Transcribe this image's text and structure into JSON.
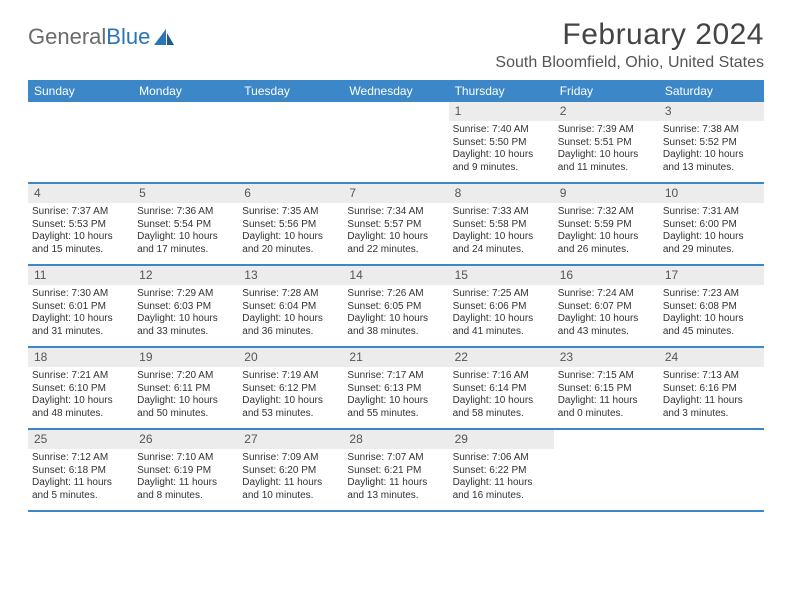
{
  "logo": {
    "text1": "General",
    "text2": "Blue"
  },
  "title": "February 2024",
  "location": "South Bloomfield, Ohio, United States",
  "dayNames": [
    "Sunday",
    "Monday",
    "Tuesday",
    "Wednesday",
    "Thursday",
    "Friday",
    "Saturday"
  ],
  "colors": {
    "headerBar": "#3b87c8",
    "dayNumBg": "#ececec",
    "text": "#333333",
    "logoGray": "#6b6b6b",
    "logoBlue": "#2b74b6"
  },
  "weeks": [
    [
      {
        "n": "",
        "sunrise": "",
        "sunset": "",
        "daylight": ""
      },
      {
        "n": "",
        "sunrise": "",
        "sunset": "",
        "daylight": ""
      },
      {
        "n": "",
        "sunrise": "",
        "sunset": "",
        "daylight": ""
      },
      {
        "n": "",
        "sunrise": "",
        "sunset": "",
        "daylight": ""
      },
      {
        "n": "1",
        "sunrise": "Sunrise: 7:40 AM",
        "sunset": "Sunset: 5:50 PM",
        "daylight": "Daylight: 10 hours and 9 minutes."
      },
      {
        "n": "2",
        "sunrise": "Sunrise: 7:39 AM",
        "sunset": "Sunset: 5:51 PM",
        "daylight": "Daylight: 10 hours and 11 minutes."
      },
      {
        "n": "3",
        "sunrise": "Sunrise: 7:38 AM",
        "sunset": "Sunset: 5:52 PM",
        "daylight": "Daylight: 10 hours and 13 minutes."
      }
    ],
    [
      {
        "n": "4",
        "sunrise": "Sunrise: 7:37 AM",
        "sunset": "Sunset: 5:53 PM",
        "daylight": "Daylight: 10 hours and 15 minutes."
      },
      {
        "n": "5",
        "sunrise": "Sunrise: 7:36 AM",
        "sunset": "Sunset: 5:54 PM",
        "daylight": "Daylight: 10 hours and 17 minutes."
      },
      {
        "n": "6",
        "sunrise": "Sunrise: 7:35 AM",
        "sunset": "Sunset: 5:56 PM",
        "daylight": "Daylight: 10 hours and 20 minutes."
      },
      {
        "n": "7",
        "sunrise": "Sunrise: 7:34 AM",
        "sunset": "Sunset: 5:57 PM",
        "daylight": "Daylight: 10 hours and 22 minutes."
      },
      {
        "n": "8",
        "sunrise": "Sunrise: 7:33 AM",
        "sunset": "Sunset: 5:58 PM",
        "daylight": "Daylight: 10 hours and 24 minutes."
      },
      {
        "n": "9",
        "sunrise": "Sunrise: 7:32 AM",
        "sunset": "Sunset: 5:59 PM",
        "daylight": "Daylight: 10 hours and 26 minutes."
      },
      {
        "n": "10",
        "sunrise": "Sunrise: 7:31 AM",
        "sunset": "Sunset: 6:00 PM",
        "daylight": "Daylight: 10 hours and 29 minutes."
      }
    ],
    [
      {
        "n": "11",
        "sunrise": "Sunrise: 7:30 AM",
        "sunset": "Sunset: 6:01 PM",
        "daylight": "Daylight: 10 hours and 31 minutes."
      },
      {
        "n": "12",
        "sunrise": "Sunrise: 7:29 AM",
        "sunset": "Sunset: 6:03 PM",
        "daylight": "Daylight: 10 hours and 33 minutes."
      },
      {
        "n": "13",
        "sunrise": "Sunrise: 7:28 AM",
        "sunset": "Sunset: 6:04 PM",
        "daylight": "Daylight: 10 hours and 36 minutes."
      },
      {
        "n": "14",
        "sunrise": "Sunrise: 7:26 AM",
        "sunset": "Sunset: 6:05 PM",
        "daylight": "Daylight: 10 hours and 38 minutes."
      },
      {
        "n": "15",
        "sunrise": "Sunrise: 7:25 AM",
        "sunset": "Sunset: 6:06 PM",
        "daylight": "Daylight: 10 hours and 41 minutes."
      },
      {
        "n": "16",
        "sunrise": "Sunrise: 7:24 AM",
        "sunset": "Sunset: 6:07 PM",
        "daylight": "Daylight: 10 hours and 43 minutes."
      },
      {
        "n": "17",
        "sunrise": "Sunrise: 7:23 AM",
        "sunset": "Sunset: 6:08 PM",
        "daylight": "Daylight: 10 hours and 45 minutes."
      }
    ],
    [
      {
        "n": "18",
        "sunrise": "Sunrise: 7:21 AM",
        "sunset": "Sunset: 6:10 PM",
        "daylight": "Daylight: 10 hours and 48 minutes."
      },
      {
        "n": "19",
        "sunrise": "Sunrise: 7:20 AM",
        "sunset": "Sunset: 6:11 PM",
        "daylight": "Daylight: 10 hours and 50 minutes."
      },
      {
        "n": "20",
        "sunrise": "Sunrise: 7:19 AM",
        "sunset": "Sunset: 6:12 PM",
        "daylight": "Daylight: 10 hours and 53 minutes."
      },
      {
        "n": "21",
        "sunrise": "Sunrise: 7:17 AM",
        "sunset": "Sunset: 6:13 PM",
        "daylight": "Daylight: 10 hours and 55 minutes."
      },
      {
        "n": "22",
        "sunrise": "Sunrise: 7:16 AM",
        "sunset": "Sunset: 6:14 PM",
        "daylight": "Daylight: 10 hours and 58 minutes."
      },
      {
        "n": "23",
        "sunrise": "Sunrise: 7:15 AM",
        "sunset": "Sunset: 6:15 PM",
        "daylight": "Daylight: 11 hours and 0 minutes."
      },
      {
        "n": "24",
        "sunrise": "Sunrise: 7:13 AM",
        "sunset": "Sunset: 6:16 PM",
        "daylight": "Daylight: 11 hours and 3 minutes."
      }
    ],
    [
      {
        "n": "25",
        "sunrise": "Sunrise: 7:12 AM",
        "sunset": "Sunset: 6:18 PM",
        "daylight": "Daylight: 11 hours and 5 minutes."
      },
      {
        "n": "26",
        "sunrise": "Sunrise: 7:10 AM",
        "sunset": "Sunset: 6:19 PM",
        "daylight": "Daylight: 11 hours and 8 minutes."
      },
      {
        "n": "27",
        "sunrise": "Sunrise: 7:09 AM",
        "sunset": "Sunset: 6:20 PM",
        "daylight": "Daylight: 11 hours and 10 minutes."
      },
      {
        "n": "28",
        "sunrise": "Sunrise: 7:07 AM",
        "sunset": "Sunset: 6:21 PM",
        "daylight": "Daylight: 11 hours and 13 minutes."
      },
      {
        "n": "29",
        "sunrise": "Sunrise: 7:06 AM",
        "sunset": "Sunset: 6:22 PM",
        "daylight": "Daylight: 11 hours and 16 minutes."
      },
      {
        "n": "",
        "sunrise": "",
        "sunset": "",
        "daylight": ""
      },
      {
        "n": "",
        "sunrise": "",
        "sunset": "",
        "daylight": ""
      }
    ]
  ]
}
